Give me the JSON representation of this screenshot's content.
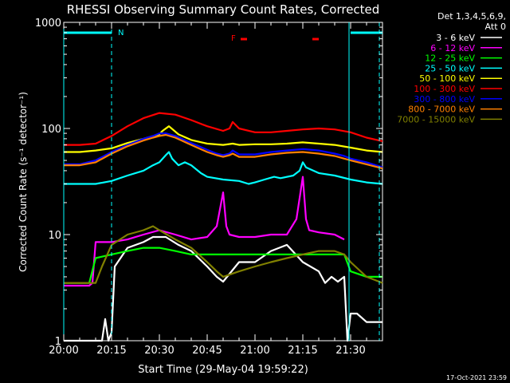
{
  "chart_data": {
    "type": "line",
    "title": "RHESSI Observing Summary Count Rates, Corrected",
    "xlabel": "Start Time (29-May-04 19:59:22)",
    "ylabel": "Corrected Count Rate (s⁻¹ detector⁻¹)",
    "y_scale": "log",
    "ylim": [
      1,
      1000
    ],
    "x_unit": "minutes after 20:00 UT",
    "xlim": [
      0,
      100
    ],
    "x_ticks": [
      {
        "v": 0,
        "label": "20:00"
      },
      {
        "v": 15,
        "label": "20:15"
      },
      {
        "v": 30,
        "label": "20:30"
      },
      {
        "v": 45,
        "label": "20:45"
      },
      {
        "v": 60,
        "label": "21:00"
      },
      {
        "v": 75,
        "label": "21:15"
      },
      {
        "v": 90,
        "label": "21:30"
      }
    ],
    "y_ticks": [
      {
        "v": 1,
        "label": "1"
      },
      {
        "v": 10,
        "label": "10"
      },
      {
        "v": 100,
        "label": "100"
      },
      {
        "v": 1000,
        "label": "1000"
      }
    ],
    "legend": {
      "header": [
        "Det 1,3,4,5,6,9,",
        "Att 0"
      ],
      "position": "right"
    },
    "footer_timestamp": "17-Oct-2021 23:59",
    "markers": {
      "night_label": "N",
      "flare_label": "F",
      "night_bars": [
        [
          0,
          15
        ],
        [
          90,
          100
        ]
      ],
      "flare_bars": [
        [
          55.5,
          57.5
        ],
        [
          78,
          80
        ]
      ],
      "vertical_lines": [
        {
          "x": 0,
          "style": "solid"
        },
        {
          "x": 15,
          "style": "dashed"
        },
        {
          "x": 89.5,
          "style": "solid"
        },
        {
          "x": 99,
          "style": "dashed"
        }
      ],
      "color": "#00ffff",
      "flare_color": "#ff0000"
    },
    "series": [
      {
        "name": "3 - 6 keV",
        "color": "#ffffff",
        "x": [
          0,
          12,
          13,
          14,
          15,
          16,
          20,
          25,
          28,
          32,
          36,
          40,
          45,
          48,
          50,
          55,
          60,
          65,
          70,
          75,
          80,
          82,
          84,
          86,
          88,
          89,
          90,
          92,
          95,
          100
        ],
        "y": [
          1,
          1,
          1.6,
          1,
          1.2,
          5,
          7.5,
          8.5,
          9.5,
          9.5,
          8,
          7,
          5,
          4,
          3.6,
          5.5,
          5.5,
          7,
          8,
          5.5,
          4.5,
          3.5,
          4,
          3.6,
          4,
          1,
          1.8,
          1.8,
          1.5,
          1.5
        ]
      },
      {
        "name": "6 - 12 keV",
        "color": "#ff00ff",
        "x": [
          0,
          8,
          9,
          10,
          15,
          20,
          25,
          30,
          35,
          40,
          45,
          48,
          50,
          51,
          52,
          55,
          60,
          65,
          70,
          73,
          75,
          76,
          77,
          80,
          85,
          88
        ],
        "y": [
          3.3,
          3.3,
          3.5,
          8.5,
          8.5,
          9,
          10,
          11,
          10,
          9,
          9.5,
          12,
          25,
          12,
          10,
          9.5,
          9.5,
          10,
          10,
          14,
          35,
          14,
          11,
          10.5,
          10,
          9
        ]
      },
      {
        "name": "12 - 25 keV",
        "color": "#00ff00",
        "x": [
          0,
          8,
          10,
          15,
          20,
          25,
          30,
          35,
          40,
          45,
          50,
          55,
          60,
          65,
          70,
          75,
          80,
          85,
          88,
          90,
          95,
          100
        ],
        "y": [
          3.5,
          3.5,
          6,
          6.5,
          7,
          7.5,
          7.5,
          7,
          6.5,
          6.5,
          6.5,
          6.5,
          6.5,
          6.5,
          6.5,
          6.5,
          6.5,
          6.5,
          6.5,
          4.5,
          4,
          4
        ]
      },
      {
        "name": "25 - 50 keV",
        "color": "#00ffff",
        "x": [
          0,
          5,
          10,
          15,
          20,
          25,
          28,
          30,
          32,
          33,
          34,
          36,
          38,
          40,
          43,
          45,
          50,
          55,
          58,
          60,
          63,
          66,
          68,
          72,
          74,
          75,
          76,
          80,
          85,
          90,
          95,
          100
        ],
        "y": [
          30,
          30,
          30,
          32,
          36,
          40,
          45,
          48,
          56,
          60,
          52,
          45,
          48,
          45,
          38,
          35,
          33,
          32,
          30,
          31,
          33,
          35,
          34,
          36,
          40,
          48,
          43,
          38,
          36,
          33,
          31,
          30
        ]
      },
      {
        "name": "50 - 100 keV",
        "color": "#ffff00",
        "x": [
          0,
          5,
          10,
          15,
          20,
          25,
          28,
          30,
          31,
          33,
          36,
          40,
          45,
          50,
          53,
          55,
          60,
          65,
          70,
          75,
          80,
          85,
          90,
          95,
          100
        ],
        "y": [
          60,
          60,
          62,
          65,
          73,
          80,
          85,
          88,
          95,
          105,
          88,
          78,
          72,
          70,
          72,
          70,
          71,
          71,
          72,
          74,
          72,
          70,
          66,
          62,
          60
        ]
      },
      {
        "name": "100 - 300 keV",
        "color": "#ff0000",
        "x": [
          0,
          5,
          10,
          15,
          20,
          25,
          30,
          35,
          40,
          45,
          50,
          52,
          53,
          55,
          60,
          65,
          70,
          75,
          80,
          85,
          90,
          95,
          100
        ],
        "y": [
          70,
          70,
          72,
          85,
          105,
          125,
          140,
          135,
          120,
          105,
          95,
          100,
          115,
          100,
          92,
          92,
          95,
          98,
          100,
          98,
          92,
          82,
          76
        ]
      },
      {
        "name": "300 - 800 keV",
        "color": "#0000ff",
        "x": [
          0,
          5,
          10,
          15,
          20,
          25,
          28,
          30,
          32,
          35,
          40,
          45,
          48,
          50,
          52,
          53,
          55,
          60,
          65,
          70,
          75,
          80,
          85,
          88,
          90,
          95,
          100
        ],
        "y": [
          46,
          46,
          50,
          60,
          70,
          80,
          85,
          90,
          90,
          85,
          73,
          63,
          58,
          56,
          58,
          62,
          57,
          57,
          60,
          62,
          64,
          62,
          58,
          55,
          52,
          48,
          43
        ]
      },
      {
        "name": "800 - 7000 keV",
        "color": "#ff8000",
        "x": [
          0,
          5,
          10,
          15,
          20,
          25,
          28,
          30,
          32,
          35,
          40,
          45,
          48,
          50,
          52,
          53,
          55,
          60,
          65,
          70,
          75,
          80,
          85,
          88,
          90,
          95,
          100
        ],
        "y": [
          45,
          45,
          48,
          58,
          68,
          77,
          82,
          85,
          87,
          82,
          70,
          60,
          56,
          54,
          56,
          58,
          54,
          54,
          57,
          59,
          60,
          58,
          55,
          52,
          50,
          46,
          42
        ]
      },
      {
        "name": "7000 - 15000 keV",
        "color": "#808000",
        "x": [
          0,
          10,
          12,
          15,
          20,
          25,
          28,
          30,
          35,
          40,
          45,
          48,
          50,
          55,
          60,
          65,
          70,
          75,
          80,
          85,
          88,
          90,
          95,
          100
        ],
        "y": [
          3.5,
          3.5,
          5,
          8,
          10,
          11,
          12,
          11,
          9,
          7.5,
          5.5,
          4.5,
          4,
          4.5,
          5,
          5.5,
          6,
          6.5,
          7,
          7,
          6.5,
          5.5,
          4,
          3.5
        ]
      }
    ]
  }
}
